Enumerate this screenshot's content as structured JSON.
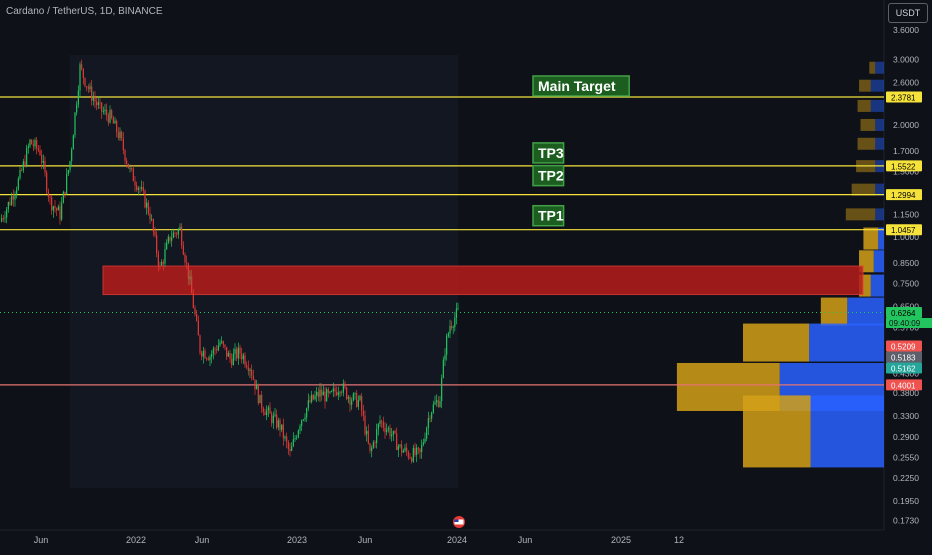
{
  "header": {
    "title": "Cardano / TetherUS, 1D, BINANCE",
    "currency_button": "USDT"
  },
  "chart_data": {
    "type": "candlestick",
    "symbol": "Cardano / TetherUS",
    "interval": "1D",
    "exchange": "BINANCE",
    "y_scale": "log",
    "ylim": [
      0.165,
      3.6
    ],
    "price_ticks": [
      "3.6000",
      "3.0000",
      "2.6000",
      "2.0000",
      "1.7000",
      "1.5000",
      "1.1500",
      "1.0000",
      "0.8500",
      "0.7500",
      "0.6500",
      "0.5700",
      "0.4300",
      "0.3800",
      "0.3300",
      "0.2900",
      "0.2550",
      "0.2250",
      "0.1950",
      "0.1730"
    ],
    "time_labels": [
      "Jun",
      "2022",
      "Jun",
      "2023",
      "Jun",
      "2024",
      "Jun",
      "2025",
      "12"
    ],
    "close_path": [
      [
        0,
        1.1
      ],
      [
        10,
        1.25
      ],
      [
        20,
        1.45
      ],
      [
        30,
        1.8
      ],
      [
        40,
        1.7
      ],
      [
        50,
        1.25
      ],
      [
        60,
        1.15
      ],
      [
        70,
        1.6
      ],
      [
        80,
        2.85
      ],
      [
        90,
        2.45
      ],
      [
        100,
        2.2
      ],
      [
        110,
        2.1
      ],
      [
        120,
        1.85
      ],
      [
        130,
        1.5
      ],
      [
        140,
        1.35
      ],
      [
        150,
        1.15
      ],
      [
        160,
        0.82
      ],
      [
        170,
        1.0
      ],
      [
        180,
        1.05
      ],
      [
        190,
        0.75
      ],
      [
        200,
        0.5
      ],
      [
        210,
        0.48
      ],
      [
        220,
        0.52
      ],
      [
        230,
        0.47
      ],
      [
        240,
        0.49
      ],
      [
        250,
        0.45
      ],
      [
        260,
        0.36
      ],
      [
        270,
        0.33
      ],
      [
        280,
        0.31
      ],
      [
        290,
        0.26
      ],
      [
        300,
        0.32
      ],
      [
        310,
        0.36
      ],
      [
        320,
        0.38
      ],
      [
        330,
        0.37
      ],
      [
        340,
        0.4
      ],
      [
        350,
        0.37
      ],
      [
        360,
        0.36
      ],
      [
        370,
        0.26
      ],
      [
        380,
        0.32
      ],
      [
        390,
        0.3
      ],
      [
        400,
        0.27
      ],
      [
        410,
        0.26
      ],
      [
        420,
        0.26
      ],
      [
        430,
        0.34
      ],
      [
        440,
        0.37
      ],
      [
        445,
        0.5
      ],
      [
        450,
        0.58
      ],
      [
        458,
        0.6264
      ]
    ],
    "horizontal_lines": [
      {
        "price": 2.3781,
        "color": "#f5e33b"
      },
      {
        "price": 1.5522,
        "color": "#f5e33b"
      },
      {
        "price": 1.2994,
        "color": "#f5e33b"
      },
      {
        "price": 1.0457,
        "color": "#f5e33b"
      },
      {
        "price": 0.4001,
        "color": "#e57373"
      }
    ],
    "zone": {
      "high": 0.835,
      "low": 0.7,
      "color": "#b71c1c"
    },
    "annotations": [
      {
        "text": "Main Target",
        "price": 2.3781
      },
      {
        "text": "TP3",
        "price": 1.5522
      },
      {
        "text": "TP2",
        "price": 1.2994
      },
      {
        "text": "TP1",
        "price": 1.0457
      }
    ],
    "price_badges": [
      {
        "text": "2.3781",
        "price": 2.3781,
        "bg": "#f5e33b",
        "fg": "#000000"
      },
      {
        "text": "1.5522",
        "price": 1.5522,
        "bg": "#f5e33b",
        "fg": "#000000"
      },
      {
        "text": "1.2994",
        "price": 1.2994,
        "bg": "#f5e33b",
        "fg": "#000000"
      },
      {
        "text": "1.0457",
        "price": 1.0457,
        "bg": "#f5e33b",
        "fg": "#000000"
      },
      {
        "text": "0.6264",
        "price": 0.6264,
        "bg": "#22c55e",
        "fg": "#000000"
      },
      {
        "text": "0.5209",
        "price": 0.5209,
        "bg": "#ef5350",
        "fg": "#ffffff"
      },
      {
        "text": "0.5183",
        "price": 0.5183,
        "bg": "#5d606b",
        "fg": "#ffffff"
      },
      {
        "text": "0.5162",
        "price": 0.5162,
        "bg": "#26a69a",
        "fg": "#ffffff"
      },
      {
        "text": "0.4001",
        "price": 0.4001,
        "bg": "#ef5350",
        "fg": "#ffffff"
      }
    ],
    "countdown": "09:40:09",
    "volume_profile": [
      {
        "price": 2.85,
        "buy": 0.4,
        "sell": 0.6
      },
      {
        "price": 2.55,
        "buy": 0.8,
        "sell": 0.9
      },
      {
        "price": 2.25,
        "buy": 0.9,
        "sell": 0.9
      },
      {
        "price": 2.0,
        "buy": 1.0,
        "sell": 0.6
      },
      {
        "price": 1.78,
        "buy": 1.2,
        "sell": 0.6
      },
      {
        "price": 1.55,
        "buy": 1.3,
        "sell": 0.6
      },
      {
        "price": 1.34,
        "buy": 1.6,
        "sell": 0.6
      },
      {
        "price": 1.15,
        "buy": 2.0,
        "sell": 0.6
      },
      {
        "price": 0.99,
        "buy": 1.0,
        "sell": 0.4
      },
      {
        "price": 0.86,
        "buy": 1.0,
        "sell": 0.7
      },
      {
        "price": 0.74,
        "buy": 0.8,
        "sell": 0.9
      },
      {
        "price": 0.63,
        "buy": 1.8,
        "sell": 2.5
      },
      {
        "price": 0.52,
        "buy": 4.5,
        "sell": 5.1
      },
      {
        "price": 0.395,
        "buy": 7.0,
        "sell": 7.1
      },
      {
        "price": 0.3,
        "buy": 4.6,
        "sell": 5.0
      }
    ],
    "colors": {
      "background": "#0e1117",
      "up": "#26a69a",
      "down": "#ef5350",
      "candle_up": "#22c55e",
      "candle_down": "#e53935",
      "vp_buy": "#d4a017",
      "vp_sell": "#2962ff",
      "grid": "#1c2030"
    }
  }
}
